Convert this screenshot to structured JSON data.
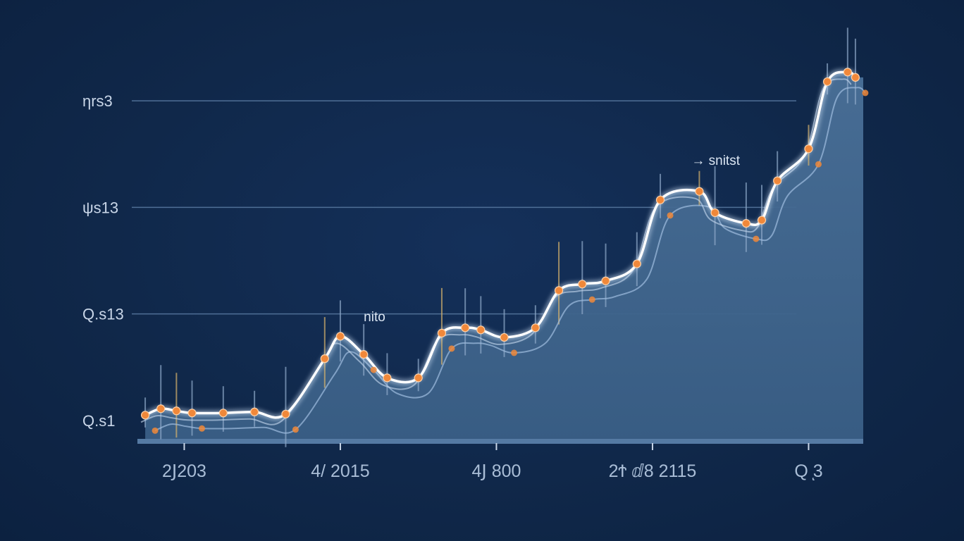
{
  "chart_data": {
    "type": "area",
    "title": "",
    "xlabel": "",
    "ylabel": "",
    "y_tick_labels": [
      "Q.s1",
      "Q.s13",
      "ψs13",
      "ηrs3"
    ],
    "y_tick_values": [
      0,
      1,
      2,
      3
    ],
    "x_tick_labels": [
      "2Ϳ203",
      "4/ 2015",
      "4Ϳ 800",
      "2Ϯ ⅆ8 2115",
      "Q ͅ3"
    ],
    "x_tick_values": [
      0.3,
      1.3,
      2.3,
      3.3,
      4.3
    ],
    "xlim": [
      0,
      4.65
    ],
    "ylim": [
      -0.1,
      3.55
    ],
    "grid": true,
    "annotations": [
      {
        "text": "nito",
        "x": 1.45,
        "y": 0.93
      },
      {
        "text": "→ snitst",
        "x": 3.55,
        "y": 2.4
      }
    ],
    "area_color": "#3f6690",
    "line_color": "#ffffff",
    "marker_color": "#f0883a",
    "series": [
      {
        "x": [
          0.05,
          0.15,
          0.25,
          0.35,
          0.55,
          0.75,
          0.95,
          1.2,
          1.3,
          1.45,
          1.6,
          1.8,
          1.95,
          2.1,
          2.2,
          2.35,
          2.55,
          2.7,
          2.85,
          3.0,
          3.2,
          3.35,
          3.6,
          3.7,
          3.9,
          4.0,
          4.1,
          4.3,
          4.42,
          4.55,
          4.6
        ],
        "y": [
          0.05,
          0.11,
          0.09,
          0.07,
          0.07,
          0.08,
          0.06,
          0.58,
          0.79,
          0.62,
          0.4,
          0.4,
          0.82,
          0.87,
          0.85,
          0.78,
          0.87,
          1.22,
          1.28,
          1.31,
          1.47,
          2.07,
          2.15,
          1.95,
          1.85,
          1.88,
          2.25,
          2.55,
          3.18,
          3.27,
          3.22
        ]
      }
    ]
  }
}
